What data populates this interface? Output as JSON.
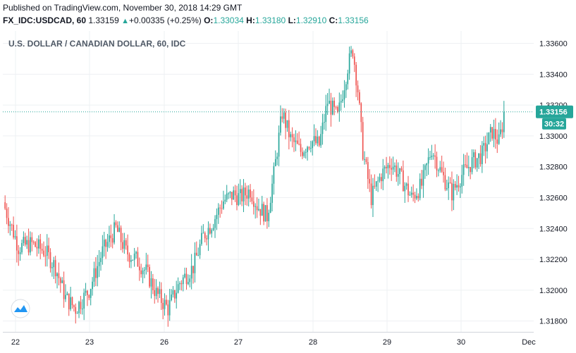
{
  "header": {
    "published": "Published on TradingView.com, November 30, 2018 14:29 GMT",
    "symbol": "FX_IDC:USDCAD, 60",
    "last": "1.33159",
    "change": "+0.00335 (+0.25%)",
    "o_label": "O:",
    "o_value": "1.33034",
    "h_label": "H:",
    "h_value": "1.33180",
    "l_label": "L:",
    "l_value": "1.32910",
    "c_label": "C:",
    "c_value": "1.33156"
  },
  "chart_data": {
    "type": "candlestick",
    "title": "U.S. DOLLAR / CANADIAN DOLLAR, 60, IDC",
    "x_ticks": [
      "22",
      "23",
      "26",
      "27",
      "28",
      "29",
      "30",
      "Dec"
    ],
    "y_ticks": [
      "1.33600",
      "1.33400",
      "1.33200",
      "1.33000",
      "1.32800",
      "1.32600",
      "1.32400",
      "1.32200",
      "1.32000",
      "1.31800"
    ],
    "ylim": [
      1.3173,
      1.3368
    ],
    "last_price": 1.33156,
    "last_price_label": "1.33156",
    "countdown_label": "30:32",
    "grid": true,
    "colors": {
      "up": "#26a69a",
      "down": "#ef5350",
      "grid": "#eef0f3",
      "price_line": "#26a69a"
    },
    "anchors": [
      [
        0,
        1.3253
      ],
      [
        8,
        1.3228
      ],
      [
        16,
        1.323
      ],
      [
        24,
        1.3225
      ],
      [
        30,
        1.3215
      ],
      [
        36,
        1.3195
      ],
      [
        42,
        1.3188
      ],
      [
        50,
        1.32
      ],
      [
        58,
        1.3225
      ],
      [
        66,
        1.324
      ],
      [
        72,
        1.3225
      ],
      [
        78,
        1.322
      ],
      [
        84,
        1.3212
      ],
      [
        90,
        1.3198
      ],
      [
        97,
        1.3188
      ],
      [
        104,
        1.3205
      ],
      [
        112,
        1.3215
      ],
      [
        118,
        1.3235
      ],
      [
        124,
        1.3245
      ],
      [
        130,
        1.3258
      ],
      [
        136,
        1.3262
      ],
      [
        140,
        1.326
      ],
      [
        146,
        1.3265
      ],
      [
        150,
        1.3255
      ],
      [
        156,
        1.3248
      ],
      [
        160,
        1.3275
      ],
      [
        165,
        1.3315
      ],
      [
        170,
        1.3298
      ],
      [
        176,
        1.329
      ],
      [
        182,
        1.3297
      ],
      [
        187,
        1.3294
      ],
      [
        192,
        1.3322
      ],
      [
        198,
        1.3312
      ],
      [
        204,
        1.3345
      ],
      [
        207,
        1.3356
      ],
      [
        210,
        1.333
      ],
      [
        213,
        1.329
      ],
      [
        218,
        1.326
      ],
      [
        224,
        1.3275
      ],
      [
        230,
        1.3283
      ],
      [
        236,
        1.3272
      ],
      [
        242,
        1.326
      ],
      [
        248,
        1.3268
      ],
      [
        254,
        1.3292
      ],
      [
        260,
        1.3275
      ],
      [
        266,
        1.3263
      ],
      [
        272,
        1.3275
      ],
      [
        278,
        1.3283
      ],
      [
        284,
        1.3288
      ],
      [
        290,
        1.3303
      ],
      [
        294,
        1.3296
      ],
      [
        297,
        1.3312
      ]
    ]
  }
}
